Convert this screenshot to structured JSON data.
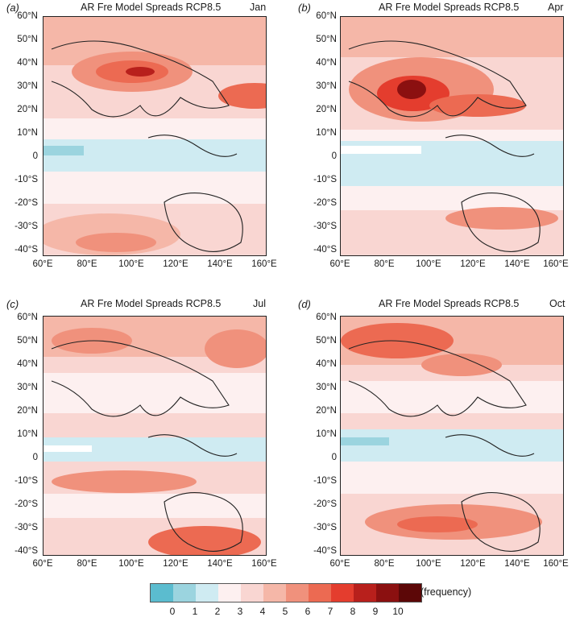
{
  "panels": [
    {
      "label": "(a)",
      "title": "AR Fre Model Spreads RCP8.5",
      "month": "Jan"
    },
    {
      "label": "(b)",
      "title": "AR Fre Model Spreads RCP8.5",
      "month": "Apr"
    },
    {
      "label": "(c)",
      "title": "AR Fre Model Spreads RCP8.5",
      "month": "Jul"
    },
    {
      "label": "(d)",
      "title": "AR Fre Model Spreads RCP8.5",
      "month": "Oct"
    }
  ],
  "lat_labels": [
    "60°N",
    "50°N",
    "40°N",
    "30°N",
    "20°N",
    "10°N",
    "0",
    "-10°S",
    "-20°S",
    "-30°S",
    "-40°S"
  ],
  "lon_labels": [
    "60°E",
    "80°E",
    "100°E",
    "120°E",
    "140°E",
    "160°E"
  ],
  "colorbar": {
    "colors": [
      "#5bbccf",
      "#9bd4df",
      "#cfebf2",
      "#fdf0f0",
      "#f9d6d2",
      "#f5b7a8",
      "#f0917c",
      "#ec6a52",
      "#e43d2e",
      "#b8201c",
      "#8b1010",
      "#5c0707"
    ],
    "ticks": [
      "0",
      "1",
      "2",
      "3",
      "4",
      "5",
      "6",
      "7",
      "8",
      "9",
      "10"
    ],
    "unit": "(frequency)"
  }
}
